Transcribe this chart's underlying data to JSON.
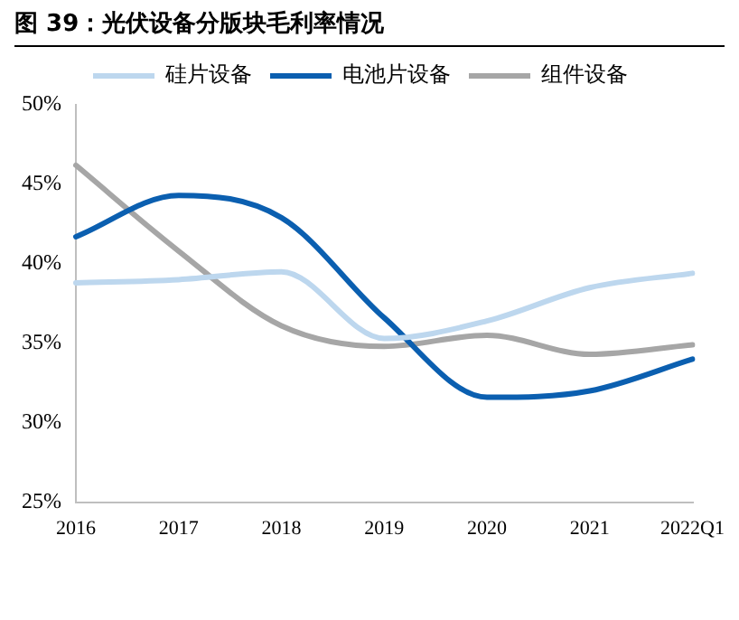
{
  "chart_data": {
    "type": "line",
    "title": "图 39：光伏设备分版块毛利率情况",
    "categories": [
      "2016",
      "2017",
      "2018",
      "2019",
      "2020",
      "2021",
      "2022Q1"
    ],
    "series": [
      {
        "name": "硅片设备",
        "color": "#bdd7ee",
        "values": [
          38.8,
          39.0,
          39.5,
          35.3,
          36.4,
          38.5,
          39.4
        ]
      },
      {
        "name": "电池片设备",
        "color": "#0b5fb0",
        "values": [
          41.7,
          44.3,
          42.9,
          36.6,
          31.6,
          32.0,
          34.0
        ]
      },
      {
        "name": "组件设备",
        "color": "#a6a6a6",
        "values": [
          46.2,
          40.8,
          36.1,
          34.8,
          35.5,
          34.3,
          34.9
        ]
      }
    ],
    "ylim": [
      25,
      50
    ],
    "yticks": [
      {
        "value": 25,
        "label": "25%"
      },
      {
        "value": 30,
        "label": "30%"
      },
      {
        "value": 35,
        "label": "35%"
      },
      {
        "value": 40,
        "label": "40%"
      },
      {
        "value": 45,
        "label": "45%"
      },
      {
        "value": 50,
        "label": "50%"
      }
    ],
    "grid": false,
    "legend": "top",
    "marker": "none",
    "line_style": "solid"
  }
}
